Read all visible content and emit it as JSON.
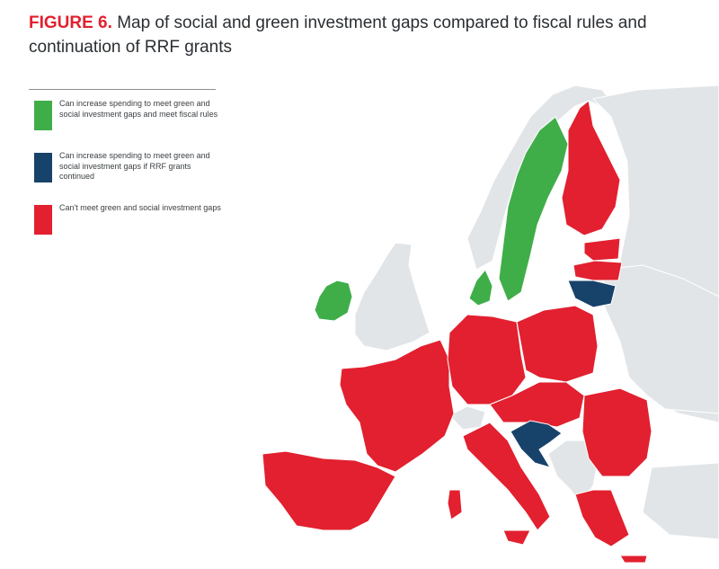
{
  "title": {
    "label": "FIGURE 6.",
    "text": "Map of social and green investment gaps compared to fiscal rules and continuation of RRF grants"
  },
  "legend": [
    {
      "color": "#3fae49",
      "text": "Can increase spending to meet green and social investment gaps and meet fiscal rules"
    },
    {
      "color": "#17426a",
      "text": "Can increase spending to meet green and social investment gaps if RRF grants continued"
    },
    {
      "color": "#e2202f",
      "text": "Can't meet green and social investment gaps"
    }
  ],
  "colors": {
    "green": "#3fae49",
    "navy": "#17426a",
    "red": "#e2202f",
    "non_eu": "#e2e5e8"
  }
}
